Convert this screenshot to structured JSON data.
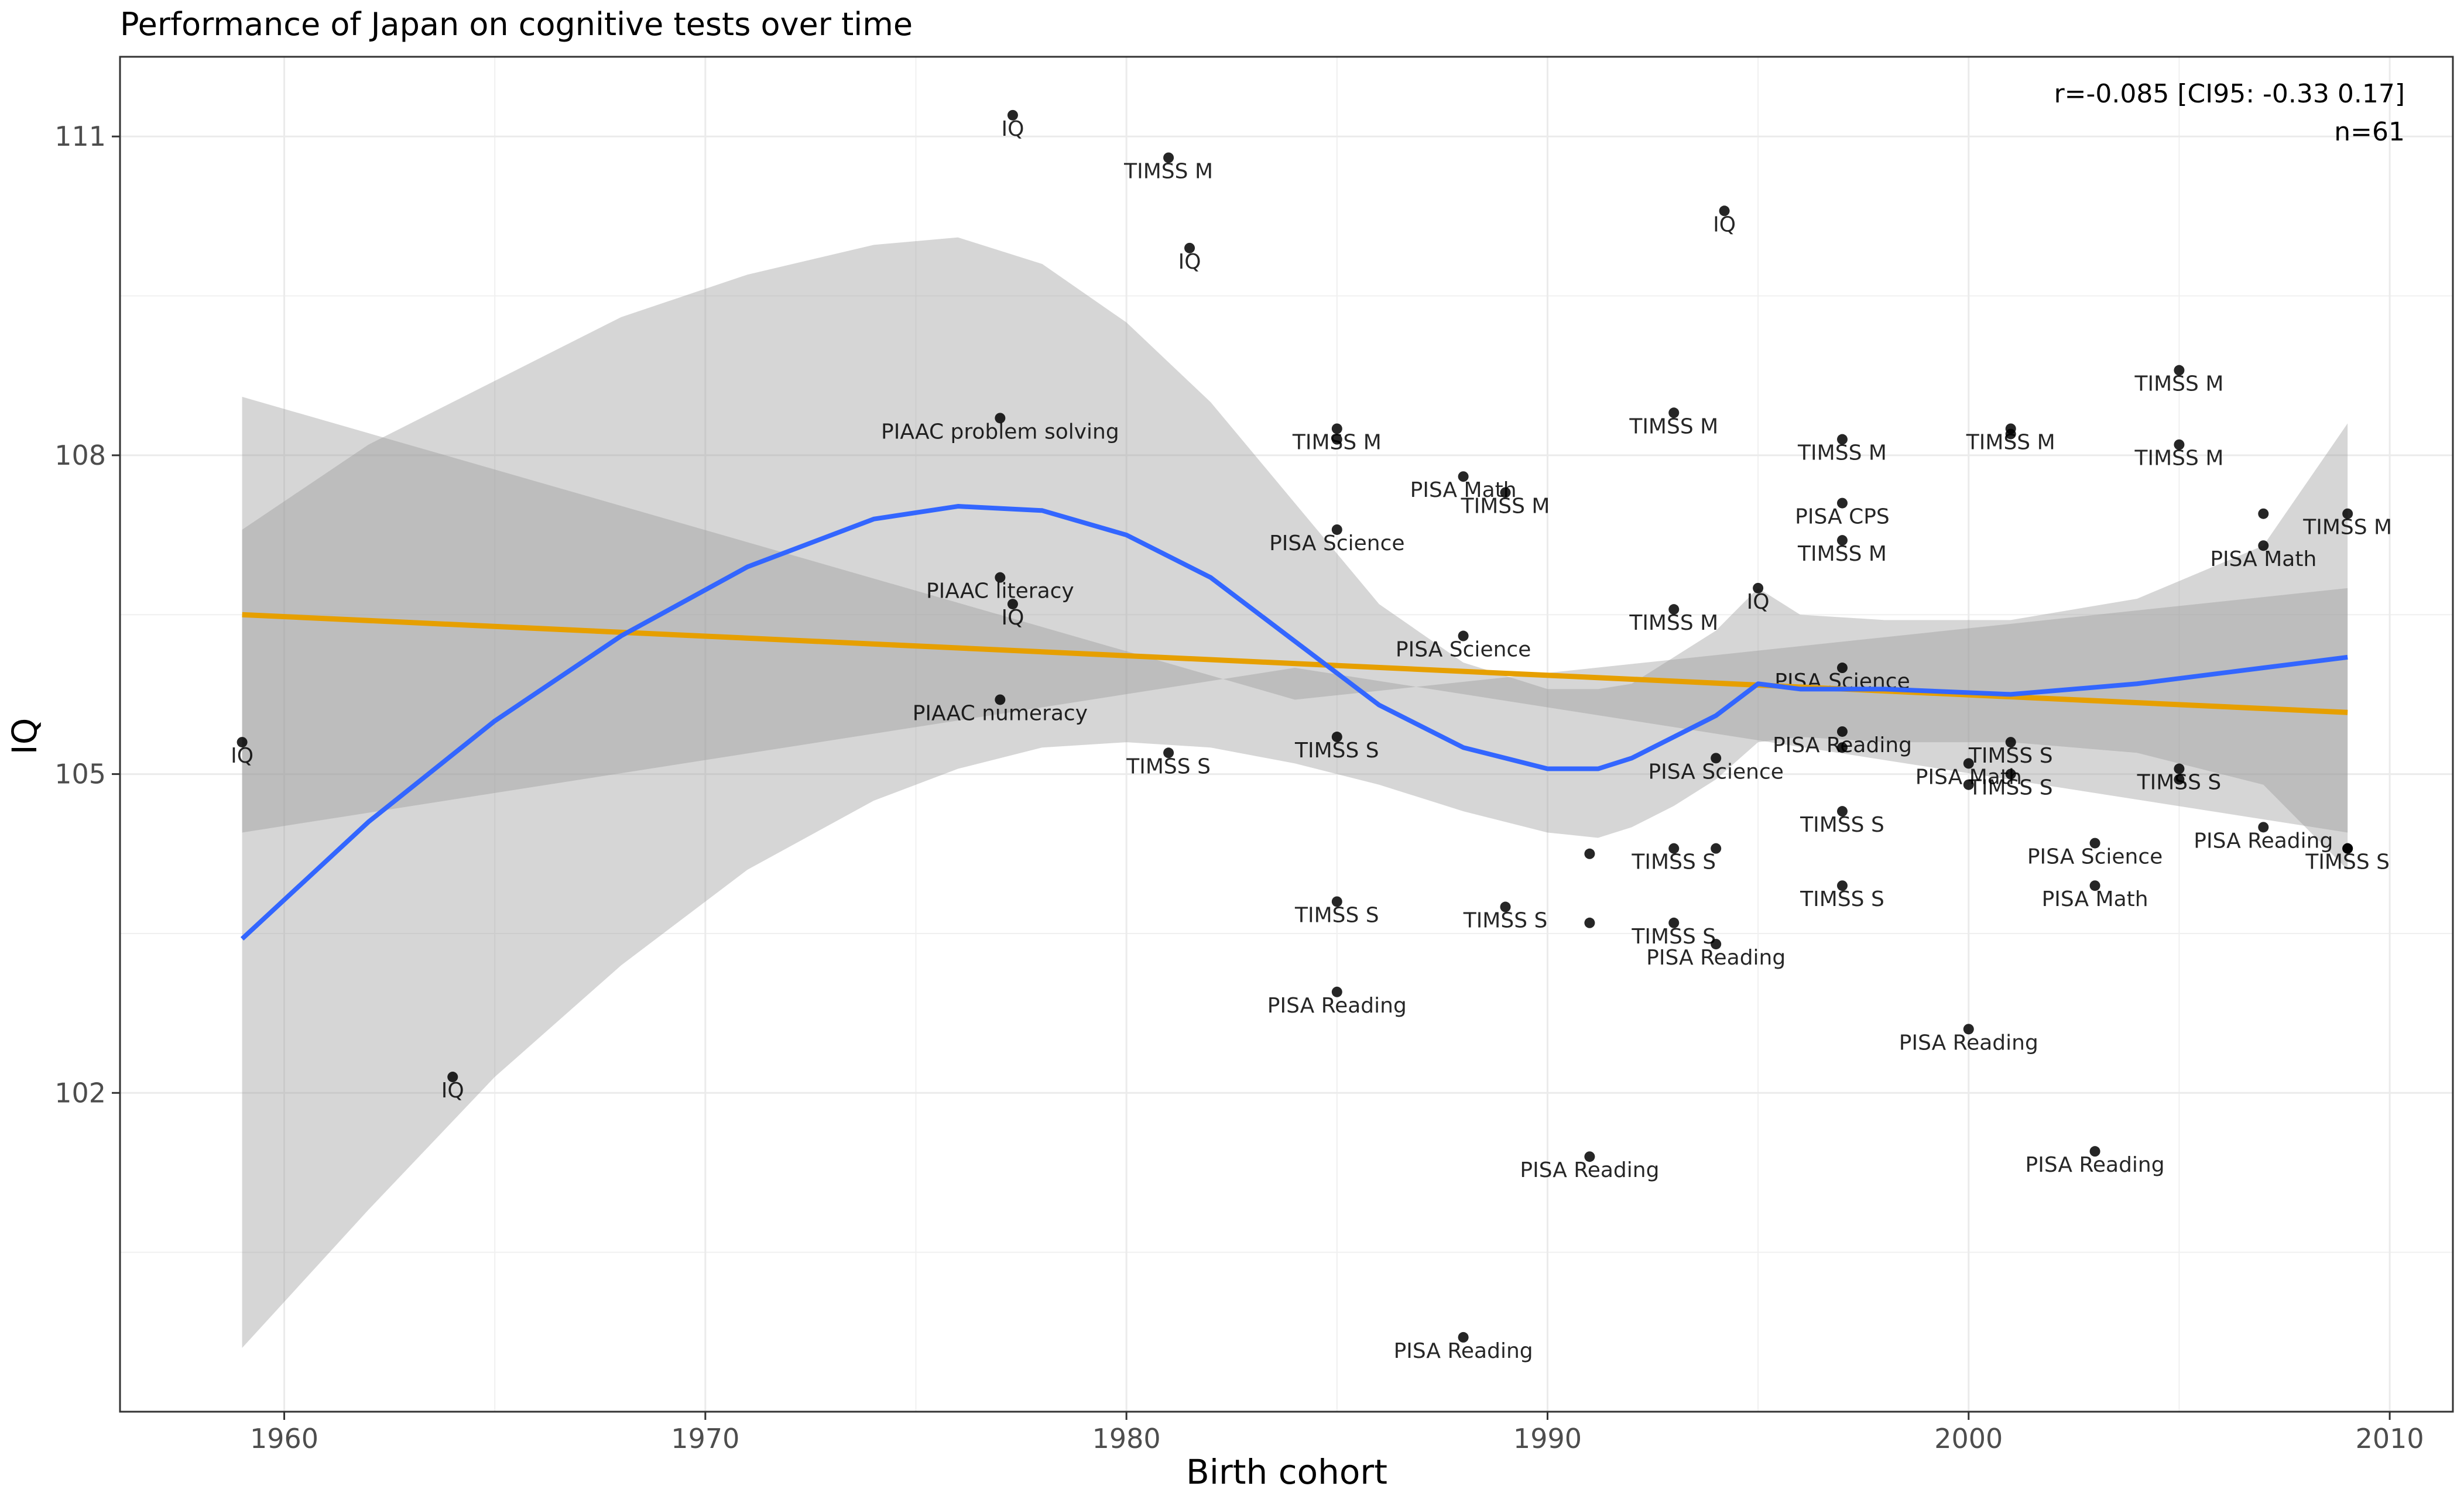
{
  "chart_data": {
    "type": "scatter",
    "title": "Performance of Japan on cognitive tests over time",
    "xlabel": "Birth cohort",
    "ylabel": "IQ",
    "xlim": [
      1956.1,
      2011.5
    ],
    "ylim": [
      99.0,
      111.75
    ],
    "xticks": [
      1960,
      1970,
      1980,
      1990,
      2000,
      2010
    ],
    "yticks": [
      102,
      105,
      108,
      111
    ],
    "grid": true,
    "annotations": {
      "correlation": "r=-0.085 [CI95: -0.33 0.17]",
      "n": "n=61"
    },
    "points": [
      {
        "x": 1959.0,
        "y": 105.3,
        "label": "IQ"
      },
      {
        "x": 1964.0,
        "y": 102.15,
        "label": "IQ"
      },
      {
        "x": 1977.3,
        "y": 111.2,
        "label": "IQ"
      },
      {
        "x": 1977.0,
        "y": 108.35,
        "label": "PIAAC problem solving"
      },
      {
        "x": 1977.0,
        "y": 106.85,
        "label": "PIAAC literacy"
      },
      {
        "x": 1977.3,
        "y": 106.6,
        "label": "IQ"
      },
      {
        "x": 1977.0,
        "y": 105.7,
        "label": "PIAAC numeracy"
      },
      {
        "x": 1981.0,
        "y": 110.8,
        "label": "TIMSS M"
      },
      {
        "x": 1981.5,
        "y": 109.95,
        "label": "IQ"
      },
      {
        "x": 1981.0,
        "y": 105.2,
        "label": "TIMSS S"
      },
      {
        "x": 1985.0,
        "y": 108.25,
        "label": "TIMSS M"
      },
      {
        "x": 1985.0,
        "y": 108.15,
        "label": ""
      },
      {
        "x": 1985.0,
        "y": 107.3,
        "label": "PISA Science"
      },
      {
        "x": 1985.0,
        "y": 105.35,
        "label": "TIMSS S"
      },
      {
        "x": 1985.0,
        "y": 103.8,
        "label": "TIMSS S"
      },
      {
        "x": 1985.0,
        "y": 102.95,
        "label": "PISA Reading"
      },
      {
        "x": 1988.0,
        "y": 107.8,
        "label": "PISA Math"
      },
      {
        "x": 1988.0,
        "y": 106.3,
        "label": "PISA Science"
      },
      {
        "x": 1988.0,
        "y": 99.7,
        "label": "PISA Reading"
      },
      {
        "x": 1989.0,
        "y": 107.65,
        "label": "TIMSS M"
      },
      {
        "x": 1989.0,
        "y": 103.75,
        "label": "TIMSS S"
      },
      {
        "x": 1991.0,
        "y": 104.25,
        "label": ""
      },
      {
        "x": 1991.0,
        "y": 103.6,
        "label": ""
      },
      {
        "x": 1991.0,
        "y": 101.4,
        "label": "PISA Reading"
      },
      {
        "x": 1993.0,
        "y": 108.4,
        "label": "TIMSS M"
      },
      {
        "x": 1993.0,
        "y": 106.55,
        "label": "TIMSS M"
      },
      {
        "x": 1993.0,
        "y": 104.3,
        "label": "TIMSS S"
      },
      {
        "x": 1993.0,
        "y": 103.6,
        "label": "TIMSS S"
      },
      {
        "x": 1994.2,
        "y": 110.3,
        "label": "IQ"
      },
      {
        "x": 1994.0,
        "y": 105.15,
        "label": "PISA Science"
      },
      {
        "x": 1994.0,
        "y": 104.3,
        "label": ""
      },
      {
        "x": 1994.0,
        "y": 103.4,
        "label": "PISA Reading"
      },
      {
        "x": 1995.0,
        "y": 106.75,
        "label": "IQ"
      },
      {
        "x": 1997.0,
        "y": 108.15,
        "label": "TIMSS M"
      },
      {
        "x": 1997.0,
        "y": 107.55,
        "label": "PISA CPS"
      },
      {
        "x": 1997.0,
        "y": 107.2,
        "label": "TIMSS M"
      },
      {
        "x": 1997.0,
        "y": 106.0,
        "label": "PISA Science"
      },
      {
        "x": 1997.0,
        "y": 105.4,
        "label": "PISA Reading"
      },
      {
        "x": 1997.0,
        "y": 105.25,
        "label": ""
      },
      {
        "x": 1997.0,
        "y": 104.65,
        "label": "TIMSS S"
      },
      {
        "x": 1997.0,
        "y": 103.95,
        "label": "TIMSS S"
      },
      {
        "x": 2000.0,
        "y": 105.1,
        "label": "PISA Math"
      },
      {
        "x": 2000.0,
        "y": 104.9,
        "label": ""
      },
      {
        "x": 2000.0,
        "y": 102.6,
        "label": "PISA Reading"
      },
      {
        "x": 2001.0,
        "y": 108.25,
        "label": "TIMSS M"
      },
      {
        "x": 2001.0,
        "y": 108.2,
        "label": ""
      },
      {
        "x": 2001.0,
        "y": 105.3,
        "label": "TIMSS S"
      },
      {
        "x": 2001.0,
        "y": 105.0,
        "label": "TIMSS S"
      },
      {
        "x": 2003.0,
        "y": 104.35,
        "label": "PISA Science"
      },
      {
        "x": 2003.0,
        "y": 103.95,
        "label": "PISA Math"
      },
      {
        "x": 2003.0,
        "y": 101.45,
        "label": "PISA Reading"
      },
      {
        "x": 2005.0,
        "y": 108.8,
        "label": "TIMSS M"
      },
      {
        "x": 2005.0,
        "y": 108.1,
        "label": "TIMSS M"
      },
      {
        "x": 2005.0,
        "y": 105.05,
        "label": "TIMSS S"
      },
      {
        "x": 2005.0,
        "y": 104.95,
        "label": ""
      },
      {
        "x": 2007.0,
        "y": 107.45,
        "label": ""
      },
      {
        "x": 2007.0,
        "y": 107.15,
        "label": "PISA Math"
      },
      {
        "x": 2007.0,
        "y": 104.5,
        "label": "PISA Reading"
      },
      {
        "x": 2009.0,
        "y": 107.45,
        "label": "TIMSS M"
      },
      {
        "x": 2009.0,
        "y": 104.3,
        "label": "TIMSS S"
      },
      {
        "x": 2009.0,
        "y": 104.3,
        "label": ""
      }
    ],
    "linear_fit": {
      "color": "#E69F00",
      "x": [
        1959,
        2009
      ],
      "y": [
        106.5,
        105.58
      ],
      "ci_lower": [
        104.45,
        104.45
      ],
      "ci_mid": [
        106.0,
        105.7
      ],
      "ci_upper": [
        108.55,
        106.75
      ]
    },
    "loess_fit": {
      "color": "#3366FF",
      "x": [
        1959,
        1962,
        1965,
        1968,
        1971,
        1974,
        1976,
        1978,
        1980,
        1982,
        1984,
        1986,
        1988,
        1990,
        1991.2,
        1992,
        1993,
        1994,
        1995,
        1996,
        1998,
        2001,
        2004,
        2007,
        2009
      ],
      "y": [
        103.45,
        104.55,
        105.5,
        106.3,
        106.95,
        107.4,
        107.52,
        107.48,
        107.25,
        106.85,
        106.25,
        105.65,
        105.25,
        105.05,
        105.05,
        105.15,
        105.35,
        105.55,
        105.85,
        105.8,
        105.8,
        105.75,
        105.85,
        106.0,
        106.1
      ],
      "ci_lower": [
        99.6,
        100.9,
        102.15,
        103.2,
        104.1,
        104.75,
        105.05,
        105.25,
        105.3,
        105.25,
        105.1,
        104.9,
        104.65,
        104.45,
        104.4,
        104.5,
        104.7,
        104.95,
        105.3,
        105.35,
        105.3,
        105.3,
        105.2,
        104.9,
        104.1
      ],
      "ci_upper": [
        107.3,
        108.1,
        108.7,
        109.3,
        109.7,
        109.98,
        110.05,
        109.8,
        109.25,
        108.5,
        107.55,
        106.6,
        106.05,
        105.8,
        105.8,
        105.85,
        106.1,
        106.35,
        106.75,
        106.5,
        106.45,
        106.45,
        106.65,
        107.15,
        108.3
      ]
    }
  }
}
